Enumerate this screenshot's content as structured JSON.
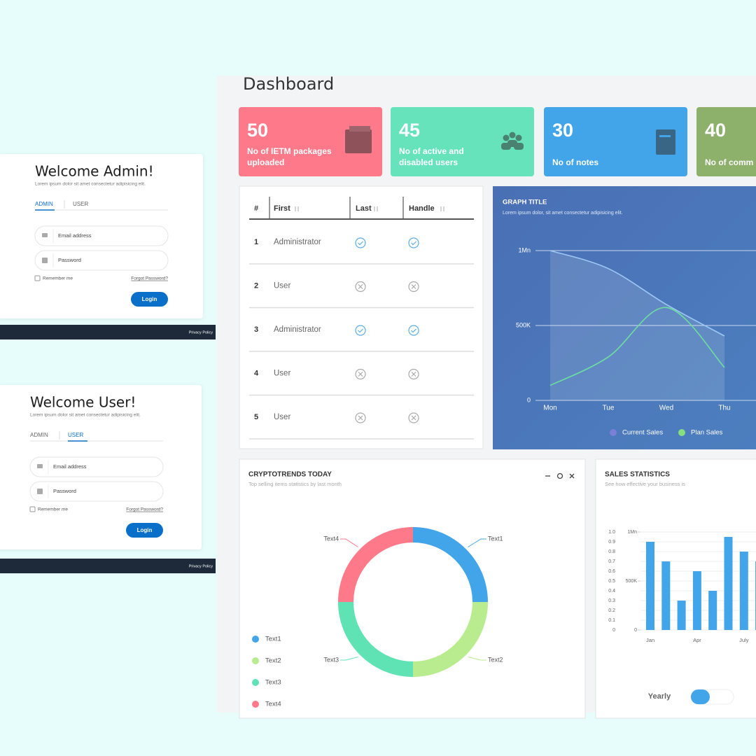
{
  "login_panels": [
    {
      "title": "Welcome Admin!",
      "subtitle": "Lorem ipsum dolor sit amet consectetur adipisicing elit.",
      "tabs": [
        "ADMIN",
        "USER"
      ],
      "active_tab": 0,
      "fields": [
        "Email address",
        "Password"
      ],
      "remember": "Remember me",
      "forgot": "Forgot Password?",
      "button": "Login",
      "footer": "Privacy Policy"
    },
    {
      "title": "Welcome User!",
      "subtitle": "Lorem ipsum dolor sit amet consectetur adipisicing elit.",
      "tabs": [
        "ADMIN",
        "USER"
      ],
      "active_tab": 1,
      "fields": [
        "Email address",
        "Password"
      ],
      "remember": "Remember me",
      "forgot": "Forgot Password?",
      "button": "Login",
      "footer": "Privacy Policy"
    }
  ],
  "dashboard": {
    "title": "Dashboard",
    "stat_cards": [
      {
        "value": 50,
        "label": "No of IETM packages uploaded",
        "color": "#fe7a8a"
      },
      {
        "value": 45,
        "label": "No of active and disabled users",
        "color": "#66e3bb"
      },
      {
        "value": 30,
        "label": "No of notes",
        "color": "#42a5ea"
      },
      {
        "value": 40,
        "label": "No of comm",
        "color": "#8db06a"
      }
    ],
    "table": {
      "headers": [
        "#",
        "First",
        "Last",
        "Handle"
      ],
      "rows": [
        {
          "id": 1,
          "first": "Administrator",
          "last_checked": true,
          "handle_checked": true
        },
        {
          "id": 2,
          "first": "User",
          "last_checked": false,
          "handle_checked": false
        },
        {
          "id": 3,
          "first": "Administrator",
          "last_checked": true,
          "handle_checked": true
        },
        {
          "id": 4,
          "first": "User",
          "last_checked": false,
          "handle_checked": false
        },
        {
          "id": 5,
          "first": "User",
          "last_checked": false,
          "handle_checked": false
        }
      ]
    }
  },
  "chart_data": [
    {
      "type": "line",
      "title": "GRAPH TITLE",
      "subtitle": "Lorem ipsum dolor, sit amet consectetur adipisicing elit.",
      "categories": [
        "Mon",
        "Tue",
        "Wed",
        "Thu"
      ],
      "series": [
        {
          "name": "Current Sales",
          "color": "#9cc8f5",
          "legend_color": "#7b7fd8",
          "values": [
            1000000,
            880000,
            640000,
            430000
          ]
        },
        {
          "name": "Plan Sales",
          "color": "#6de0a0",
          "legend_color": "#86e07e",
          "values": [
            100000,
            290000,
            620000,
            220000
          ]
        }
      ],
      "ylim": [
        0,
        1000000
      ],
      "yticks": [
        0,
        {
          "value": 500000,
          "label": "500K"
        },
        {
          "value": 1000000,
          "label": "1Mn"
        }
      ],
      "grid": true
    },
    {
      "type": "pie",
      "donut": true,
      "title": "CRYPTOTRENDS TODAY",
      "subtitle": "Top selling items statistics by last month",
      "categories": [
        "Text1",
        "Text2",
        "Text3",
        "Text4"
      ],
      "values": [
        25,
        25,
        25,
        25
      ],
      "colors": [
        "#42a5ea",
        "#b9ec8f",
        "#5fe3b5",
        "#fe7a8a"
      ]
    },
    {
      "type": "bar",
      "title": "SALES STATISTICS",
      "subtitle": "See how effective your business is",
      "categories": [
        "Jan",
        null,
        null,
        "Apr",
        null,
        null,
        "July",
        null
      ],
      "values": [
        0.9,
        0.7,
        0.3,
        0.6,
        0.4,
        0.95,
        0.8,
        0.7
      ],
      "color": "#42a5ea",
      "ylim": [
        0,
        1
      ],
      "yticks": [
        0,
        0.1,
        0.2,
        0.3,
        0.4,
        0.5,
        0.6,
        0.7,
        0.8,
        0.9,
        {
          "value": 1,
          "label": "1.0"
        }
      ],
      "y2lim": [
        0,
        1000000
      ],
      "y2ticks": [
        0,
        {
          "value": 500000,
          "label": "500K"
        },
        {
          "value": 1000000,
          "label": "1Mn"
        }
      ],
      "grid": true,
      "toggle_label": "Yearly"
    }
  ]
}
